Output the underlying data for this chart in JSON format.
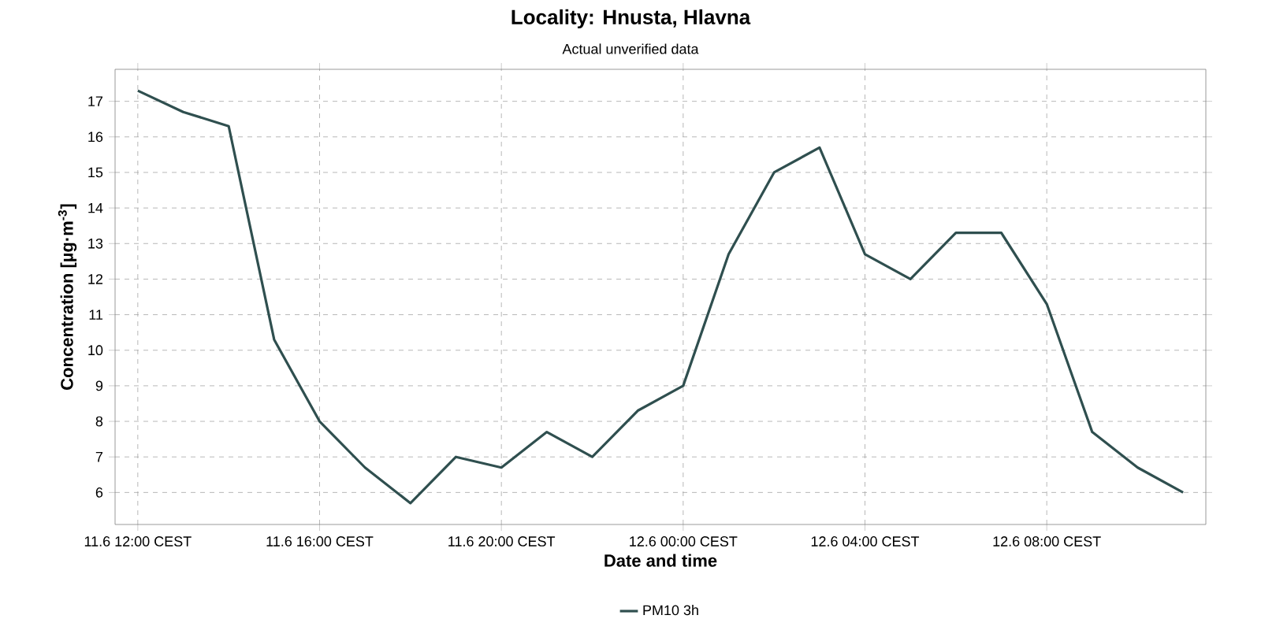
{
  "chart_data": {
    "type": "line",
    "title": "Locality: Hnusta, Hlavna",
    "subtitle": "Actual unverified data",
    "xlabel": "Date and time",
    "ylabel": "Concentration [µg·m$^{-3}$]",
    "categories": [
      "11.6 12:00 CEST",
      null,
      null,
      null,
      "11.6 16:00 CEST",
      null,
      null,
      null,
      "11.6 20:00 CEST",
      null,
      null,
      null,
      "12.6 00:00 CEST",
      null,
      null,
      null,
      "12.6 04:00 CEST",
      null,
      null,
      null,
      "12.6 08:00 CEST",
      null,
      null,
      null
    ],
    "series": [
      {
        "name": "PM10 3h",
        "color": "#2f4f4f",
        "values": [
          17.3,
          16.7,
          16.3,
          10.3,
          8.0,
          6.7,
          5.7,
          7.0,
          6.7,
          7.7,
          7.0,
          8.3,
          9.0,
          12.7,
          15.0,
          15.7,
          12.7,
          12.0,
          13.3,
          13.3,
          11.3,
          7.7,
          6.7,
          6.0
        ]
      }
    ],
    "ylim": [
      5.1,
      17.9
    ],
    "yticks": [
      6,
      7,
      8,
      9,
      10,
      11,
      12,
      13,
      14,
      15,
      16,
      17
    ],
    "grid": true,
    "legend": "bottom"
  }
}
